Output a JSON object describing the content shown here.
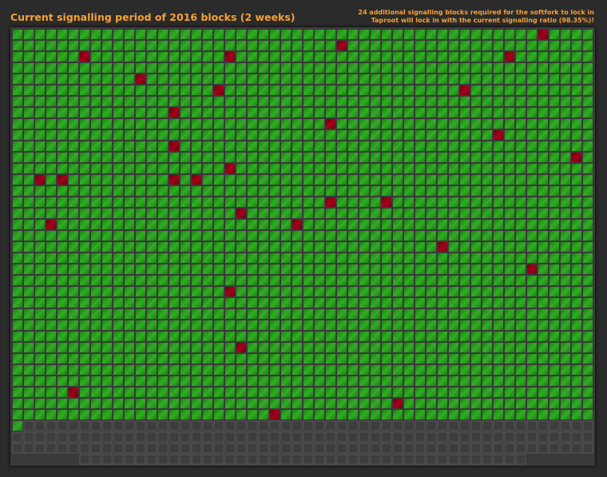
{
  "header": {
    "title": "Current signalling period of 2016 blocks (2 weeks)",
    "notice": [
      "24 additional signalling blocks required for the softfork to lock in",
      "Taproot will lock in with the current signalling ratio (98.35%)!"
    ]
  },
  "blocks": {
    "count": 2016,
    "mined": 1821,
    "non_signalling": [
      47,
      81,
      110,
      123,
      148,
      219,
      278,
      300,
      378,
      444,
      511,
      534,
      622,
      643,
      678,
      680,
      690,
      692,
      808,
      813,
      852,
      887,
      909,
      1026,
      1138,
      1215,
      1476,
      1669,
      1750,
      1791
    ]
  }
}
